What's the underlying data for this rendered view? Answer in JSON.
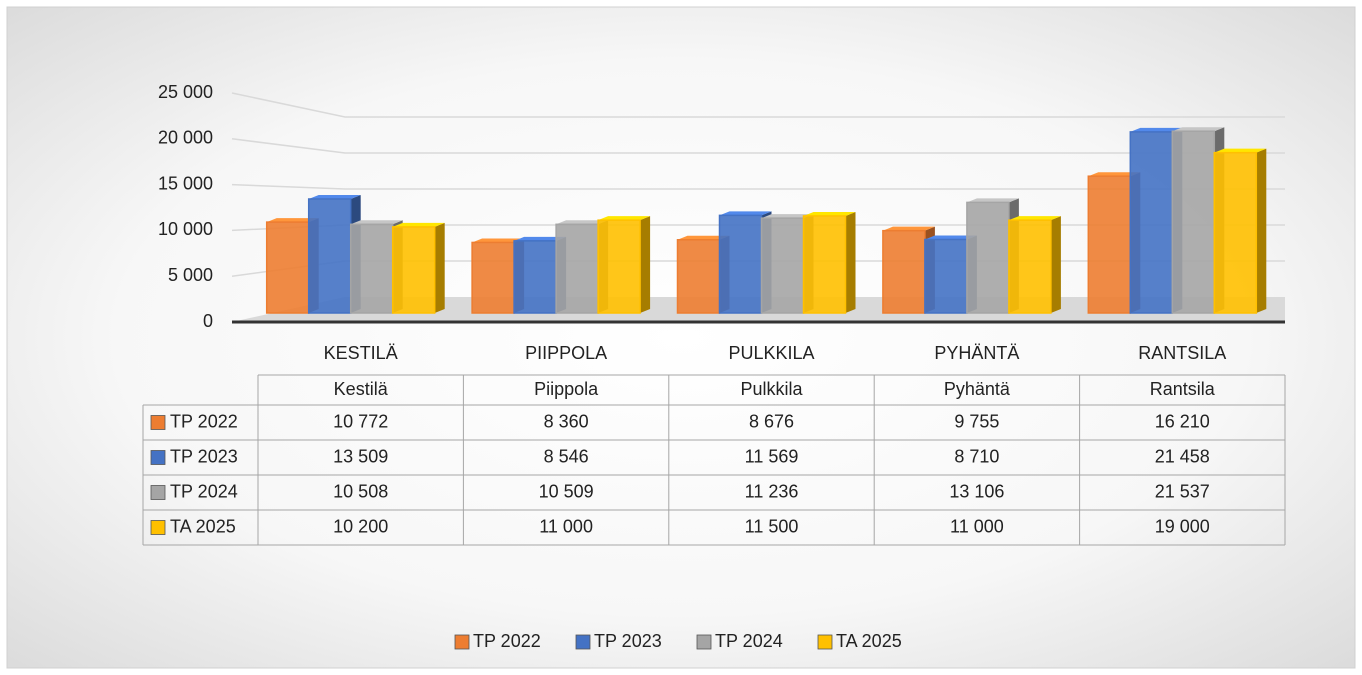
{
  "chart_data": {
    "type": "bar3d",
    "categories": [
      "KESTILÄ",
      "PIIPPOLA",
      "PULKKILA",
      "PYHÄNTÄ",
      "RANTSILA"
    ],
    "table_header": [
      "Kestilä",
      "Piippola",
      "Pulkkila",
      "Pyhäntä",
      "Rantsila"
    ],
    "series": [
      {
        "name": "TP 2022",
        "color": "#ed7d31",
        "values": [
          10772,
          8360,
          8676,
          9755,
          16210
        ],
        "value_labels": [
          "10 772",
          "8 360",
          "8 676",
          "9 755",
          "16 210"
        ]
      },
      {
        "name": "TP 2023",
        "color": "#4472c4",
        "values": [
          13509,
          8546,
          11569,
          8710,
          21458
        ],
        "value_labels": [
          "13 509",
          "8 546",
          "11 569",
          "8 710",
          "21 458"
        ]
      },
      {
        "name": "TP 2024",
        "color": "#a5a5a5",
        "values": [
          10508,
          10509,
          11236,
          13106,
          21537
        ],
        "value_labels": [
          "10 508",
          "10 509",
          "11 236",
          "13 106",
          "21 537"
        ]
      },
      {
        "name": "TA 2025",
        "color": "#ffc000",
        "values": [
          10200,
          11000,
          11500,
          11000,
          19000
        ],
        "value_labels": [
          "10 200",
          "11 000",
          "11 500",
          "11 000",
          "19 000"
        ]
      }
    ],
    "ylim": [
      0,
      25000
    ],
    "yticks": [
      0,
      {
        "value": 5000,
        "label": "5 000"
      },
      {
        "value": 10000,
        "label": "10 000"
      },
      {
        "value": 15000,
        "label": "15 000"
      },
      {
        "value": 20000,
        "label": "20 000"
      },
      {
        "value": 25000,
        "label": "25 000"
      }
    ],
    "grid": true,
    "legend": "bottom"
  }
}
